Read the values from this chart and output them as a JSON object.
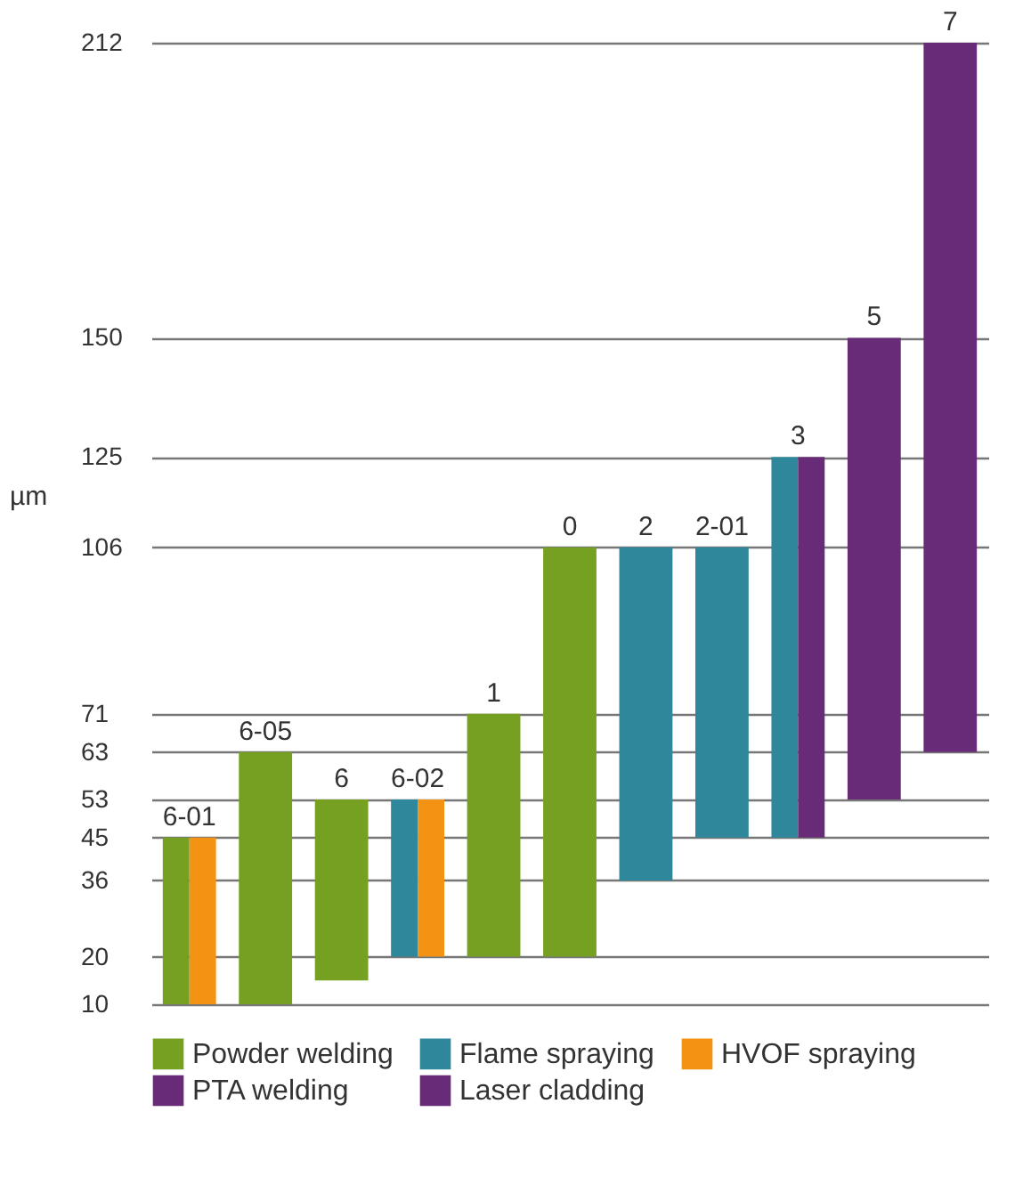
{
  "chart_data": {
    "type": "bar",
    "categories": [
      "6-01",
      "6-05",
      "6",
      "6-02",
      "1",
      "0",
      "2",
      "2-01",
      "3",
      "5",
      "7"
    ],
    "ylabel": "µm",
    "series": [
      {
        "name": "Powder welding",
        "color": "#76a022",
        "base": [
          10,
          10,
          15,
          null,
          20,
          20,
          null,
          null,
          null,
          null,
          null
        ],
        "values": [
          35,
          53,
          38,
          null,
          51,
          86,
          null,
          null,
          null,
          null,
          null
        ]
      },
      {
        "name": "Flame spraying",
        "color": "#2f879b",
        "base": [
          null,
          null,
          null,
          20,
          null,
          null,
          36,
          45,
          45,
          null,
          null
        ],
        "values": [
          null,
          null,
          null,
          33,
          null,
          null,
          70,
          61,
          80,
          null,
          null
        ]
      },
      {
        "name": "HVOF spraying",
        "color": "#f39314",
        "base": [
          10,
          null,
          null,
          20,
          null,
          null,
          null,
          null,
          null,
          null,
          null
        ],
        "values": [
          35,
          null,
          null,
          33,
          null,
          null,
          null,
          null,
          null,
          null,
          null
        ]
      },
      {
        "name": "PTA welding",
        "color": "#682b77",
        "base": [
          null,
          null,
          null,
          null,
          null,
          null,
          null,
          null,
          45,
          null,
          null
        ],
        "values": [
          null,
          null,
          null,
          null,
          null,
          null,
          null,
          null,
          80,
          null,
          null
        ]
      },
      {
        "name": "Laser cladding",
        "color": "#682b77",
        "base": [
          null,
          null,
          null,
          null,
          null,
          null,
          null,
          null,
          null,
          53,
          63
        ],
        "values": [
          null,
          null,
          null,
          null,
          null,
          null,
          null,
          null,
          null,
          97,
          149
        ]
      }
    ],
    "ylim": [
      10,
      212
    ],
    "yticks": [
      10,
      20,
      36,
      45,
      53,
      63,
      71,
      106,
      125,
      150,
      212
    ],
    "grid": "y",
    "legend": "bottom"
  }
}
